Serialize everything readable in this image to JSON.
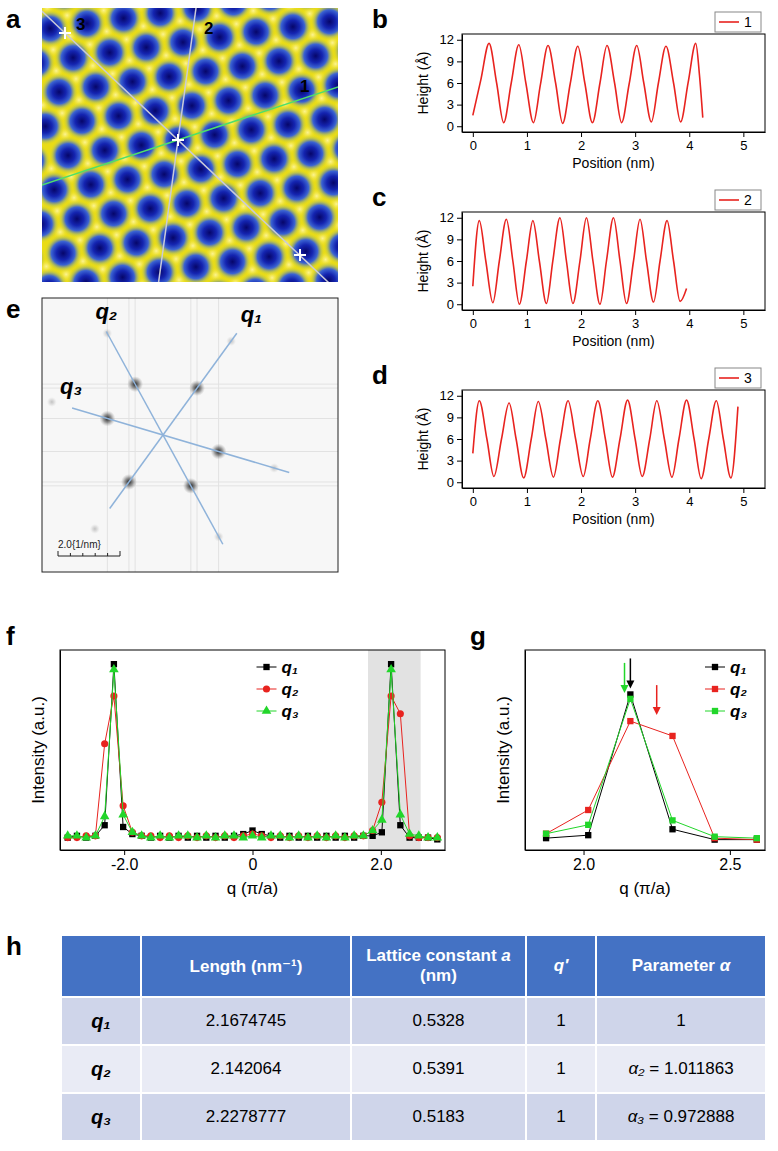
{
  "image_a": {
    "panel_label": "a",
    "labels": [
      "1",
      "2",
      "3"
    ]
  },
  "chart_data": [
    {
      "type": "line",
      "panel_label": "b",
      "x_label": "Position (nm)",
      "y_label": "Height (Å)",
      "xlim": [
        -0.2,
        5.4
      ],
      "xticks": [
        0,
        1,
        2,
        3,
        4,
        5
      ],
      "ylim": [
        -0.8,
        12.8
      ],
      "yticks": [
        0,
        3,
        6,
        9,
        12
      ],
      "legend": "top-right",
      "x": [
        0,
        0.15,
        0.3,
        0.44,
        0.57,
        0.71,
        0.85,
        0.98,
        1.12,
        1.25,
        1.39,
        1.53,
        1.66,
        1.8,
        1.94,
        2.07,
        2.21,
        2.35,
        2.48,
        2.62,
        2.75,
        2.89,
        3.03,
        3.16,
        3.3,
        3.43,
        3.57,
        3.71,
        3.84,
        3.98,
        4.12,
        4.19,
        4.25
      ],
      "series": [
        {
          "name": "1",
          "color": "#e8231f",
          "values": [
            1.5,
            6.5,
            11.5,
            6.0,
            0.5,
            6.0,
            11.3,
            6.0,
            0.5,
            5.8,
            11.2,
            6.0,
            0.4,
            5.9,
            11.1,
            6.0,
            0.5,
            6.0,
            11.2,
            6.0,
            0.5,
            5.9,
            11.2,
            6.0,
            0.6,
            6.0,
            11.1,
            6.0,
            0.6,
            6.1,
            11.5,
            7.0,
            1.2
          ]
        }
      ]
    },
    {
      "type": "line",
      "panel_label": "c",
      "x_label": "Position (nm)",
      "y_label": "Height (Å)",
      "xlim": [
        -0.2,
        5.4
      ],
      "xticks": [
        0,
        1,
        2,
        3,
        4,
        5
      ],
      "ylim": [
        -0.8,
        12.8
      ],
      "yticks": [
        0,
        3,
        6,
        9,
        12
      ],
      "legend": "top-right",
      "x": [
        0,
        0.12,
        0.24,
        0.37,
        0.49,
        0.62,
        0.74,
        0.86,
        0.99,
        1.11,
        1.23,
        1.36,
        1.48,
        1.61,
        1.73,
        1.85,
        1.98,
        2.1,
        2.22,
        2.35,
        2.47,
        2.6,
        2.72,
        2.84,
        2.97,
        3.09,
        3.21,
        3.34,
        3.46,
        3.59,
        3.71,
        3.83,
        3.95
      ],
      "series": [
        {
          "name": "2",
          "color": "#e8231f",
          "values": [
            2.5,
            11.6,
            6.0,
            0.2,
            6.0,
            11.8,
            6.0,
            0.0,
            6.0,
            11.6,
            6.0,
            0.1,
            6.1,
            12.0,
            6.0,
            0.1,
            6.0,
            12.0,
            6.0,
            0.0,
            6.0,
            12.0,
            6.0,
            0.1,
            6.0,
            11.8,
            6.0,
            0.3,
            6.0,
            11.6,
            6.0,
            0.4,
            2.2
          ]
        }
      ]
    },
    {
      "type": "line",
      "panel_label": "d",
      "x_label": "Position (nm)",
      "y_label": "Height (Å)",
      "xlim": [
        -0.2,
        5.4
      ],
      "xticks": [
        0,
        1,
        2,
        3,
        4,
        5
      ],
      "ylim": [
        -0.8,
        12.8
      ],
      "yticks": [
        0,
        3,
        6,
        9,
        12
      ],
      "legend": "top-right",
      "x": [
        0,
        0.12,
        0.26,
        0.39,
        0.53,
        0.67,
        0.8,
        0.94,
        1.08,
        1.21,
        1.35,
        1.49,
        1.62,
        1.76,
        1.9,
        2.04,
        2.17,
        2.31,
        2.45,
        2.58,
        2.72,
        2.86,
        3.0,
        3.13,
        3.27,
        3.4,
        3.54,
        3.68,
        3.81,
        3.95,
        4.09,
        4.22,
        4.36,
        4.5,
        4.63,
        4.77,
        4.9
      ],
      "series": [
        {
          "name": "3",
          "color": "#e8231f",
          "values": [
            4.0,
            11.3,
            6.0,
            0.8,
            6.0,
            11.0,
            6.0,
            0.6,
            6.0,
            11.2,
            6.0,
            0.7,
            6.0,
            11.3,
            6.0,
            0.8,
            6.0,
            11.3,
            6.0,
            0.7,
            6.0,
            11.4,
            6.0,
            0.8,
            6.0,
            11.3,
            6.0,
            0.7,
            6.0,
            11.4,
            6.0,
            0.5,
            6.0,
            11.3,
            6.0,
            0.6,
            10.5
          ]
        }
      ]
    },
    {
      "type": "line",
      "panel_label": "f",
      "x_label": "q (π/a)",
      "y_label": "Intensity (a.u.)",
      "xlim": [
        -3,
        3
      ],
      "xticks": [
        {
          "value": -2,
          "label": "-2.0"
        },
        0,
        {
          "value": 2,
          "label": "2.0"
        }
      ],
      "ylim": [
        -0.05,
        1.08
      ],
      "tick_labels": "x",
      "legend": "top-center",
      "highlight": [
        1.8,
        2.62
      ],
      "x": [
        -2.88,
        -2.736,
        -2.592,
        -2.448,
        -2.304,
        -2.16,
        -2.016,
        -1.872,
        -1.728,
        -1.584,
        -1.44,
        -1.296,
        -1.152,
        -1.008,
        -0.864,
        -0.72,
        -0.576,
        -0.432,
        -0.288,
        -0.144,
        0,
        0.144,
        0.288,
        0.432,
        0.576,
        0.72,
        0.864,
        1.008,
        1.152,
        1.296,
        1.44,
        1.584,
        1.728,
        1.872,
        2.016,
        2.16,
        2.304,
        2.448,
        2.592,
        2.736,
        2.88
      ],
      "series": [
        {
          "name": "q₁",
          "color": "#000000",
          "marker": "square",
          "values": [
            0.02,
            0.03,
            0.02,
            0.03,
            0.09,
            1.0,
            0.08,
            0.04,
            0.03,
            0.02,
            0.03,
            0.02,
            0.03,
            0.02,
            0.03,
            0.02,
            0.03,
            0.02,
            0.03,
            0.04,
            0.06,
            0.04,
            0.03,
            0.02,
            0.03,
            0.02,
            0.03,
            0.02,
            0.03,
            0.02,
            0.03,
            0.02,
            0.03,
            0.03,
            0.05,
            1.0,
            0.09,
            0.02,
            0.02,
            0.02,
            0.01
          ]
        },
        {
          "name": "q₂",
          "color": "#e8231f",
          "marker": "circle",
          "values": [
            0.02,
            0.02,
            0.03,
            0.03,
            0.55,
            0.82,
            0.2,
            0.05,
            0.03,
            0.03,
            0.02,
            0.03,
            0.02,
            0.03,
            0.02,
            0.03,
            0.02,
            0.03,
            0.02,
            0.03,
            0.04,
            0.03,
            0.02,
            0.03,
            0.02,
            0.03,
            0.02,
            0.03,
            0.02,
            0.03,
            0.02,
            0.03,
            0.03,
            0.06,
            0.22,
            0.82,
            0.72,
            0.03,
            0.02,
            0.02,
            0.02
          ]
        },
        {
          "name": "q₃",
          "color": "#22d62a",
          "marker": "triangle",
          "values": [
            0.03,
            0.03,
            0.02,
            0.03,
            0.14,
            0.97,
            0.15,
            0.05,
            0.03,
            0.02,
            0.03,
            0.02,
            0.03,
            0.03,
            0.02,
            0.03,
            0.02,
            0.03,
            0.03,
            0.02,
            0.03,
            0.02,
            0.03,
            0.03,
            0.02,
            0.03,
            0.02,
            0.03,
            0.02,
            0.03,
            0.02,
            0.03,
            0.03,
            0.06,
            0.12,
            0.97,
            0.15,
            0.04,
            0.03,
            0.02,
            0.02
          ]
        }
      ]
    },
    {
      "type": "line",
      "panel_label": "g",
      "x_label": "q (π/a)",
      "y_label": "Intensity (a.u.)",
      "xlim": [
        1.8,
        2.62
      ],
      "xticks": [
        {
          "value": 2,
          "label": "2.0"
        },
        {
          "value": 2.5,
          "label": "2.5"
        }
      ],
      "ylim": [
        -0.05,
        1.3
      ],
      "tick_labels": "x",
      "legend": "top-right",
      "x": [
        1.872,
        2.016,
        2.16,
        2.304,
        2.448,
        2.592
      ],
      "series": [
        {
          "name": "q₁",
          "color": "#000000",
          "marker": "square",
          "arrow": 2.16,
          "values": [
            0.03,
            0.05,
            1.0,
            0.09,
            0.02,
            0.02
          ]
        },
        {
          "name": "q₂",
          "color": "#e8231f",
          "marker": "square",
          "arrow": 2.25,
          "values": [
            0.06,
            0.22,
            0.82,
            0.72,
            0.03,
            0.02
          ]
        },
        {
          "name": "q₃",
          "color": "#22d62a",
          "marker": "square",
          "arrow": 2.14,
          "values": [
            0.06,
            0.12,
            0.97,
            0.15,
            0.04,
            0.03
          ]
        }
      ]
    }
  ],
  "image_e": {
    "panel_label": "e",
    "labels": [
      "q₁",
      "q₂",
      "q₃"
    ],
    "scale_bar": "2.0{1/nm}"
  },
  "table": {
    "panel_label": "h",
    "columns": [
      "Length (nm⁻¹)",
      "Lattice constant a (nm)",
      "q′",
      "Parameter α"
    ],
    "rows": [
      {
        "label": "q₁",
        "cells": [
          "2.1674745",
          "0.5328",
          "1",
          "1"
        ]
      },
      {
        "label": "q₂",
        "cells": [
          "2.142064",
          "0.5391",
          "1",
          "α₂ = 1.011863"
        ]
      },
      {
        "label": "q₃",
        "cells": [
          "2.2278777",
          "0.5183",
          "1",
          "α₃ = 0.972888"
        ]
      }
    ]
  }
}
